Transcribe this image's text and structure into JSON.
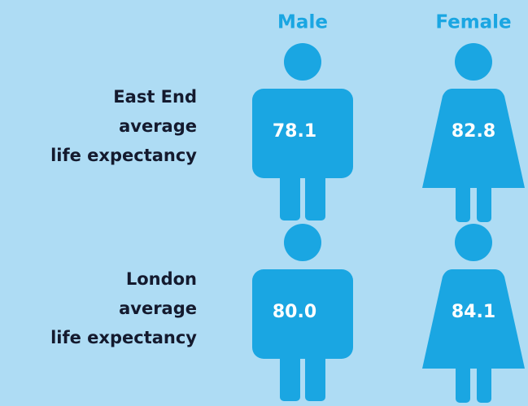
{
  "columns": [
    "Male",
    "Female"
  ],
  "rows": [
    {
      "label": [
        "East End",
        "average",
        "life expectancy"
      ],
      "values": [
        "78.1",
        "82.8"
      ]
    },
    {
      "label": [
        "London",
        "average",
        "life expectancy"
      ],
      "values": [
        "80.0",
        "84.1"
      ]
    }
  ]
}
